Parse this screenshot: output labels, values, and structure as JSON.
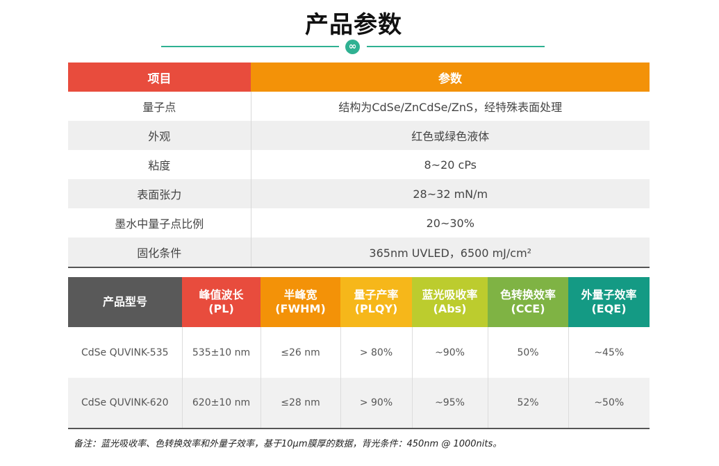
{
  "title": "产品参数",
  "divider_icon": "infinity-icon",
  "spec_table": {
    "headers": [
      "项目",
      "参数"
    ],
    "rows": [
      {
        "item": "量子点",
        "value": "结构为CdSe/ZnCdSe/ZnS，经特殊表面处理"
      },
      {
        "item": "外观",
        "value": "红色或绿色液体"
      },
      {
        "item": "粘度",
        "value": "8~20 cPs"
      },
      {
        "item": "表面张力",
        "value": "28~32 mN/m"
      },
      {
        "item": "墨水中量子点比例",
        "value": "20~30%"
      },
      {
        "item": "固化条件",
        "value": "365nm UVLED，6500 mJ/cm²"
      }
    ],
    "colors": {
      "header_item": "#e84c3d",
      "header_value": "#f39208"
    }
  },
  "product_table": {
    "headers": [
      {
        "line1": "产品型号",
        "line2": "",
        "color": "#595959"
      },
      {
        "line1": "峰值波长",
        "line2": "(PL)",
        "color": "#e84c3d"
      },
      {
        "line1": "半峰宽",
        "line2": "(FWHM)",
        "color": "#f39208"
      },
      {
        "line1": "量子产率",
        "line2": "(PLQY)",
        "color": "#f6b71a"
      },
      {
        "line1": "蓝光吸收率",
        "line2": "(Abs)",
        "color": "#bccc2e"
      },
      {
        "line1": "色转换效率",
        "line2": "(CCE)",
        "color": "#7fb344"
      },
      {
        "line1": "外量子效率",
        "line2": "(EQE)",
        "color": "#149a84"
      }
    ],
    "rows": [
      [
        "CdSe QUVINK-535",
        "535±10 nm",
        "≤26 nm",
        "> 80%",
        "~90%",
        "50%",
        "~45%"
      ],
      [
        "CdSe QUVINK-620",
        "620±10 nm",
        "≤28 nm",
        "> 90%",
        "~95%",
        "52%",
        "~50%"
      ]
    ]
  },
  "note": "备注：蓝光吸收率、色转换效率和外量子效率，基于10μm膜厚的数据，背光条件：450nm @ 1000nits。"
}
